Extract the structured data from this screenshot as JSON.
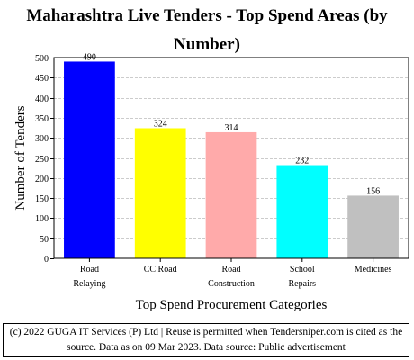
{
  "chart_data": {
    "type": "bar",
    "title_lines": [
      "Maharashtra Live Tenders - Top Spend Areas (by",
      "Number)"
    ],
    "xlabel": "Top Spend Procurement Categories",
    "ylabel": "Number of Tenders",
    "categories": [
      [
        "Road",
        "Relaying"
      ],
      [
        "CC Road"
      ],
      [
        "Road",
        "Construction"
      ],
      [
        "School",
        "Repairs"
      ],
      [
        "Medicines"
      ]
    ],
    "values": [
      490,
      324,
      314,
      232,
      156
    ],
    "colors": [
      "#0000ff",
      "#ffff00",
      "#ffaaaa",
      "#00ffff",
      "#c0c0c0"
    ],
    "ylim": [
      0,
      500
    ],
    "yticks": [
      0,
      50,
      100,
      150,
      200,
      250,
      300,
      350,
      400,
      450,
      500
    ],
    "grid": true
  },
  "footer": {
    "line1": "(c) 2022 GUGA IT Services (P) Ltd | Reuse is permitted when Tendersniper.com is cited as the",
    "line2": "source. Data as on 09 Mar 2023. Data source: Public advertisement"
  }
}
